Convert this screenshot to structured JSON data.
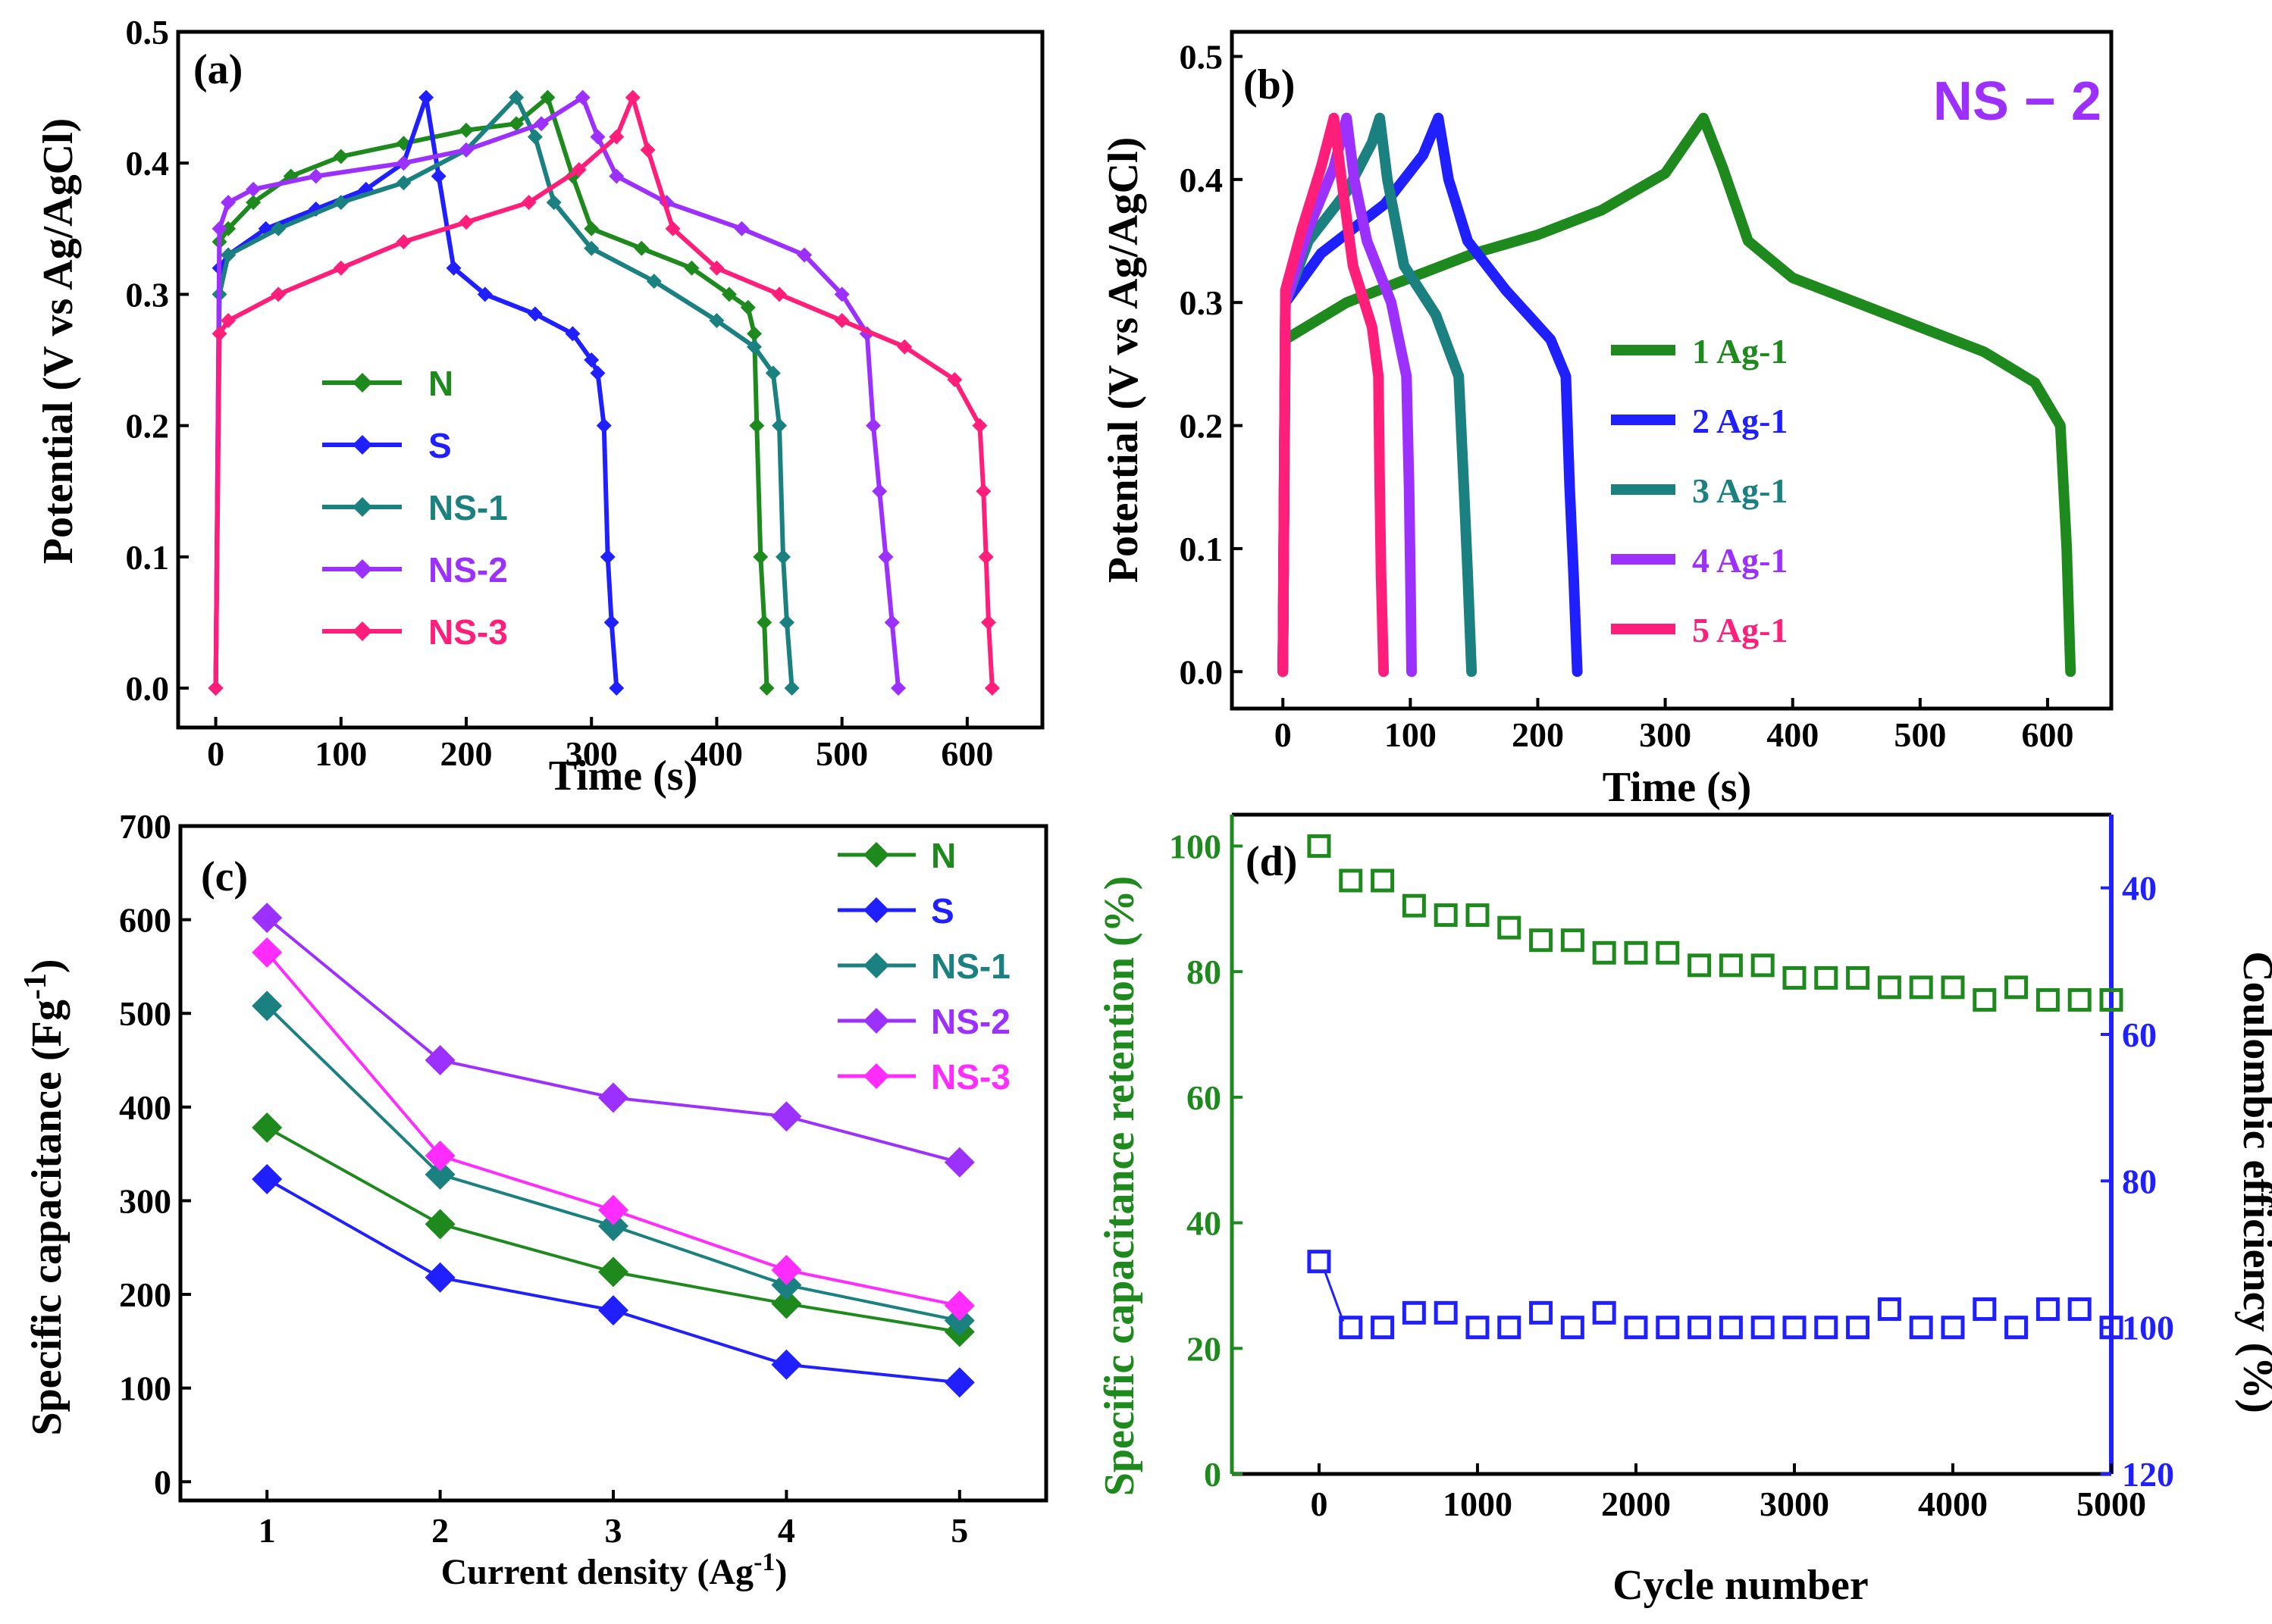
{
  "chart_data": [
    {
      "panel": "(a)",
      "type": "line",
      "xlabel": "Time (s)",
      "ylabel": "Potential (V vs Ag/AgCl)",
      "xlim": [
        -30,
        660
      ],
      "ylim": [
        -0.03,
        0.5
      ],
      "xticks": [
        "0",
        "100",
        "200",
        "300",
        "400",
        "500",
        "600"
      ],
      "yticks": [
        "0.0",
        "0.1",
        "0.2",
        "0.3",
        "0.4",
        "0.5"
      ],
      "legend": [
        "N",
        "S",
        "NS-1",
        "NS-2",
        "NS-3"
      ],
      "series": [
        {
          "name": "N",
          "color": "#1e8a1e",
          "points": [
            [
              0,
              0
            ],
            [
              3,
              0.34
            ],
            [
              10,
              0.35
            ],
            [
              30,
              0.37
            ],
            [
              60,
              0.39
            ],
            [
              100,
              0.405
            ],
            [
              150,
              0.415
            ],
            [
              200,
              0.425
            ],
            [
              240,
              0.43
            ],
            [
              265,
              0.45
            ],
            [
              285,
              0.39
            ],
            [
              300,
              0.35
            ],
            [
              340,
              0.335
            ],
            [
              380,
              0.32
            ],
            [
              410,
              0.3
            ],
            [
              425,
              0.29
            ],
            [
              430,
              0.27
            ],
            [
              432,
              0.2
            ],
            [
              435,
              0.1
            ],
            [
              438,
              0.05
            ],
            [
              440,
              0
            ]
          ]
        },
        {
          "name": "S",
          "color": "#1f1fff",
          "points": [
            [
              0,
              0
            ],
            [
              3,
              0.32
            ],
            [
              10,
              0.33
            ],
            [
              40,
              0.35
            ],
            [
              80,
              0.365
            ],
            [
              120,
              0.38
            ],
            [
              150,
              0.4
            ],
            [
              168,
              0.45
            ],
            [
              178,
              0.39
            ],
            [
              190,
              0.32
            ],
            [
              215,
              0.3
            ],
            [
              255,
              0.285
            ],
            [
              285,
              0.27
            ],
            [
              300,
              0.25
            ],
            [
              305,
              0.24
            ],
            [
              310,
              0.2
            ],
            [
              313,
              0.1
            ],
            [
              316,
              0.05
            ],
            [
              320,
              0
            ]
          ]
        },
        {
          "name": "NS-1",
          "color": "#1a8080",
          "points": [
            [
              0,
              0
            ],
            [
              3,
              0.3
            ],
            [
              10,
              0.33
            ],
            [
              50,
              0.35
            ],
            [
              100,
              0.37
            ],
            [
              150,
              0.385
            ],
            [
              200,
              0.41
            ],
            [
              240,
              0.45
            ],
            [
              255,
              0.42
            ],
            [
              270,
              0.37
            ],
            [
              300,
              0.335
            ],
            [
              350,
              0.31
            ],
            [
              400,
              0.28
            ],
            [
              430,
              0.26
            ],
            [
              445,
              0.24
            ],
            [
              450,
              0.2
            ],
            [
              453,
              0.1
            ],
            [
              456,
              0.05
            ],
            [
              460,
              0
            ]
          ]
        },
        {
          "name": "NS-2",
          "color": "#9b30ff",
          "points": [
            [
              0,
              0
            ],
            [
              3,
              0.35
            ],
            [
              10,
              0.37
            ],
            [
              30,
              0.38
            ],
            [
              80,
              0.39
            ],
            [
              150,
              0.4
            ],
            [
              200,
              0.41
            ],
            [
              260,
              0.43
            ],
            [
              293,
              0.45
            ],
            [
              305,
              0.42
            ],
            [
              320,
              0.39
            ],
            [
              360,
              0.37
            ],
            [
              420,
              0.35
            ],
            [
              470,
              0.33
            ],
            [
              500,
              0.3
            ],
            [
              520,
              0.27
            ],
            [
              525,
              0.2
            ],
            [
              530,
              0.15
            ],
            [
              535,
              0.1
            ],
            [
              540,
              0.05
            ],
            [
              545,
              0
            ]
          ]
        },
        {
          "name": "NS-3",
          "color": "#ff1f7a",
          "points": [
            [
              0,
              0
            ],
            [
              3,
              0.27
            ],
            [
              10,
              0.28
            ],
            [
              50,
              0.3
            ],
            [
              100,
              0.32
            ],
            [
              150,
              0.34
            ],
            [
              200,
              0.355
            ],
            [
              250,
              0.37
            ],
            [
              290,
              0.395
            ],
            [
              320,
              0.42
            ],
            [
              333,
              0.45
            ],
            [
              345,
              0.41
            ],
            [
              365,
              0.35
            ],
            [
              400,
              0.32
            ],
            [
              450,
              0.3
            ],
            [
              500,
              0.28
            ],
            [
              550,
              0.26
            ],
            [
              590,
              0.235
            ],
            [
              610,
              0.2
            ],
            [
              613,
              0.15
            ],
            [
              615,
              0.1
            ],
            [
              617,
              0.05
            ],
            [
              620,
              0
            ]
          ]
        }
      ]
    },
    {
      "panel": "(b)",
      "type": "line",
      "tag": "NS − 2",
      "xlabel": "Time (s)",
      "ylabel": "Potential (V vs Ag/AgCl)",
      "xlim": [
        -40,
        650
      ],
      "ylim": [
        -0.03,
        0.52
      ],
      "xticks": [
        "0",
        "100",
        "200",
        "300",
        "400",
        "500",
        "600"
      ],
      "yticks": [
        "0.0",
        "0.1",
        "0.2",
        "0.3",
        "0.4",
        "0.5"
      ],
      "legend": [
        "1 Ag-1",
        "2 Ag-1",
        "3 Ag-1",
        "4 Ag-1",
        "5 Ag-1"
      ],
      "series": [
        {
          "name": "1 Ag-1",
          "color": "#1e8a1e",
          "points": [
            [
              0,
              0
            ],
            [
              2,
              0.27
            ],
            [
              50,
              0.3
            ],
            [
              100,
              0.32
            ],
            [
              150,
              0.34
            ],
            [
              200,
              0.355
            ],
            [
              250,
              0.375
            ],
            [
              300,
              0.405
            ],
            [
              330,
              0.45
            ],
            [
              345,
              0.41
            ],
            [
              365,
              0.35
            ],
            [
              400,
              0.32
            ],
            [
              450,
              0.3
            ],
            [
              500,
              0.28
            ],
            [
              550,
              0.26
            ],
            [
              590,
              0.235
            ],
            [
              610,
              0.2
            ],
            [
              615,
              0.1
            ],
            [
              618,
              0
            ]
          ]
        },
        {
          "name": "2 Ag-1",
          "color": "#1f1fff",
          "points": [
            [
              0,
              0
            ],
            [
              2,
              0.3
            ],
            [
              30,
              0.34
            ],
            [
              80,
              0.38
            ],
            [
              110,
              0.42
            ],
            [
              122,
              0.45
            ],
            [
              130,
              0.4
            ],
            [
              145,
              0.35
            ],
            [
              175,
              0.31
            ],
            [
              210,
              0.27
            ],
            [
              222,
              0.24
            ],
            [
              225,
              0.15
            ],
            [
              228,
              0.08
            ],
            [
              231,
              0
            ]
          ]
        },
        {
          "name": "3 Ag-1",
          "color": "#1a8080",
          "points": [
            [
              0,
              0
            ],
            [
              2,
              0.3
            ],
            [
              20,
              0.35
            ],
            [
              50,
              0.39
            ],
            [
              70,
              0.43
            ],
            [
              76,
              0.45
            ],
            [
              82,
              0.4
            ],
            [
              95,
              0.33
            ],
            [
              120,
              0.29
            ],
            [
              138,
              0.24
            ],
            [
              142,
              0.15
            ],
            [
              145,
              0.08
            ],
            [
              148,
              0
            ]
          ]
        },
        {
          "name": "4 Ag-1",
          "color": "#9b30ff",
          "points": [
            [
              0,
              0
            ],
            [
              2,
              0.3
            ],
            [
              20,
              0.36
            ],
            [
              40,
              0.41
            ],
            [
              50,
              0.45
            ],
            [
              56,
              0.4
            ],
            [
              66,
              0.35
            ],
            [
              85,
              0.3
            ],
            [
              97,
              0.24
            ],
            [
              99,
              0.15
            ],
            [
              100,
              0.08
            ],
            [
              101,
              0
            ]
          ]
        },
        {
          "name": "5 Ag-1",
          "color": "#ff1f7a",
          "points": [
            [
              0,
              0
            ],
            [
              2,
              0.31
            ],
            [
              15,
              0.36
            ],
            [
              30,
              0.41
            ],
            [
              40,
              0.45
            ],
            [
              46,
              0.4
            ],
            [
              55,
              0.33
            ],
            [
              70,
              0.28
            ],
            [
              75,
              0.24
            ],
            [
              76,
              0.15
            ],
            [
              77,
              0.08
            ],
            [
              79,
              0
            ]
          ]
        }
      ]
    },
    {
      "panel": "(c)",
      "type": "line",
      "xlabel": "Current density (Ag",
      "xlabel_sup": "-1",
      "xlabel_end": ")",
      "ylabel": "Specific capacitance (Fg",
      "ylabel_sup": "-1",
      "ylabel_end": ")",
      "xlim": [
        0.5,
        5.5
      ],
      "ylim": [
        -20,
        700
      ],
      "categories": [
        1,
        2,
        3,
        4,
        5
      ],
      "xticks": [
        "1",
        "2",
        "3",
        "4",
        "5"
      ],
      "yticks": [
        "0",
        "100",
        "200",
        "300",
        "400",
        "500",
        "600",
        "700"
      ],
      "legend": [
        "N",
        "S",
        "NS-1",
        "NS-2",
        "NS-3"
      ],
      "series": [
        {
          "name": "N",
          "color": "#1e8a1e",
          "values": [
            378,
            275,
            224,
            190,
            160
          ]
        },
        {
          "name": "S",
          "color": "#1f1fff",
          "values": [
            323,
            218,
            183,
            125,
            106
          ]
        },
        {
          "name": "NS-1",
          "color": "#1a8080",
          "values": [
            508,
            328,
            273,
            210,
            172
          ]
        },
        {
          "name": "NS-2",
          "color": "#9b30ff",
          "values": [
            602,
            450,
            410,
            390,
            341
          ]
        },
        {
          "name": "NS-3",
          "color": "#ff2cff",
          "values": [
            565,
            348,
            290,
            226,
            188
          ]
        }
      ]
    },
    {
      "panel": "(d)",
      "type": "scatter",
      "xlabel": "Cycle number",
      "ylabel_left": "Specific capacitance retention (%)",
      "ylabel_right": "Coulombic efficiency (%)",
      "xlim": [
        -550,
        5000
      ],
      "ylim_left": [
        0,
        105
      ],
      "ylim_right": [
        120,
        30
      ],
      "xticks": [
        "0",
        "1000",
        "2000",
        "3000",
        "4000",
        "5000"
      ],
      "yticks_left": [
        "0",
        "20",
        "40",
        "60",
        "80",
        "100"
      ],
      "yticks_right": [
        "40",
        "60",
        "80",
        "100",
        "120"
      ],
      "left_color": "#1e8a1e",
      "right_color": "#1f1fff",
      "retention": {
        "x": [
          0,
          200,
          400,
          600,
          800,
          1000,
          1200,
          1400,
          1600,
          1800,
          2000,
          2200,
          2400,
          2600,
          2800,
          3000,
          3200,
          3400,
          3600,
          3800,
          4000,
          4200,
          4400,
          4600,
          4800,
          5000
        ],
        "y": [
          100,
          94.5,
          94.5,
          90.5,
          89,
          89,
          87,
          85,
          85,
          83,
          83,
          83,
          81,
          81,
          81,
          79,
          79,
          79,
          77.5,
          77.5,
          77.5,
          75.5,
          77.5,
          75.5,
          75.5,
          75.5
        ]
      },
      "coulombic": {
        "x": [
          0,
          200,
          400,
          600,
          800,
          1000,
          1200,
          1400,
          1600,
          1800,
          2000,
          2200,
          2400,
          2600,
          2800,
          3000,
          3200,
          3400,
          3600,
          3800,
          4000,
          4200,
          4400,
          4600,
          4800,
          5000
        ],
        "y": [
          91,
          100,
          100,
          98,
          98,
          100,
          100,
          98,
          100,
          98,
          100,
          100,
          100,
          100,
          100,
          100,
          100,
          100,
          97.5,
          100,
          100,
          97.5,
          100,
          97.5,
          97.5,
          100
        ]
      }
    }
  ]
}
